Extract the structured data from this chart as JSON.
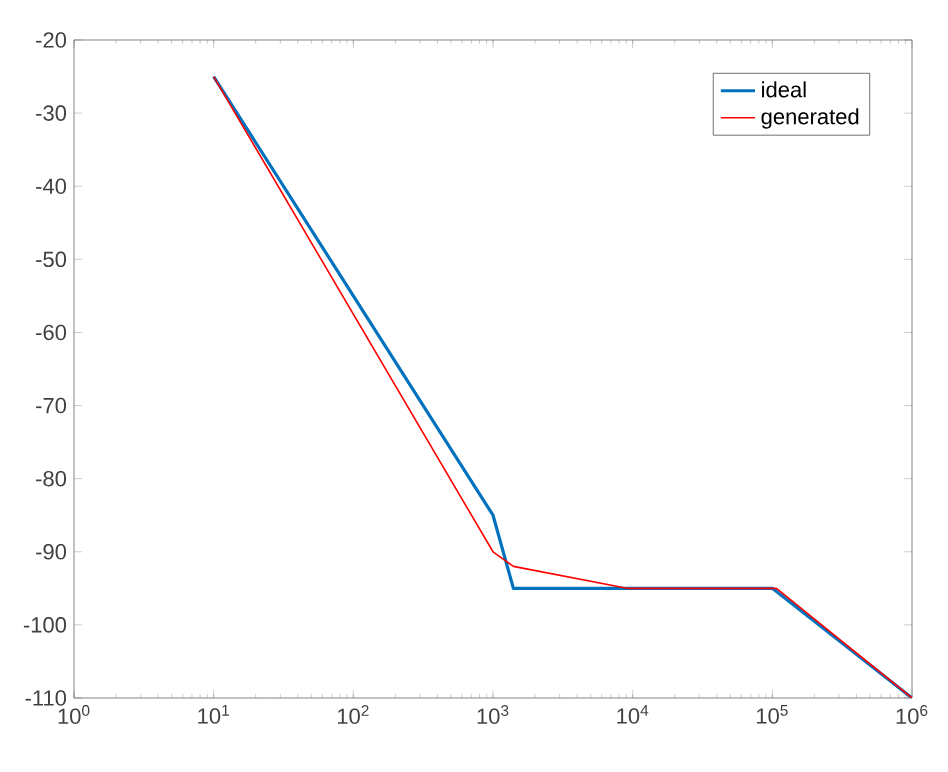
{
  "chart_data": {
    "type": "line",
    "log": "x",
    "xlim": [
      1,
      1000000
    ],
    "ylim": [
      -110,
      -20
    ],
    "xticks": [
      {
        "value": 1,
        "label": "10$^{0}$"
      },
      {
        "value": 10,
        "label": "10$^{1}$"
      },
      {
        "value": 100,
        "label": "10$^{2}$"
      },
      {
        "value": 1000,
        "label": "10$^{3}$"
      },
      {
        "value": 10000,
        "label": "10$^{4}$"
      },
      {
        "value": 100000,
        "label": "10$^{5}$"
      },
      {
        "value": 1000000,
        "label": "10$^{6}$"
      }
    ],
    "yticks": [
      -110,
      -100,
      -90,
      -80,
      -70,
      -60,
      -50,
      -40,
      -30,
      -20
    ],
    "legend": "top right",
    "marker": "none",
    "line_style": "solid",
    "series": [
      {
        "name": "ideal",
        "color": "#0072bd",
        "x": [
          10,
          1000,
          1400,
          100000,
          1000000
        ],
        "values": [
          -25,
          -85,
          -95,
          -95,
          -110
        ]
      },
      {
        "name": "generated",
        "color": "#ff0000",
        "x": [
          10,
          1000,
          1400,
          9100,
          107000,
          1000000
        ],
        "values": [
          -25,
          -90,
          -92,
          -95,
          -95,
          -110
        ]
      }
    ]
  }
}
